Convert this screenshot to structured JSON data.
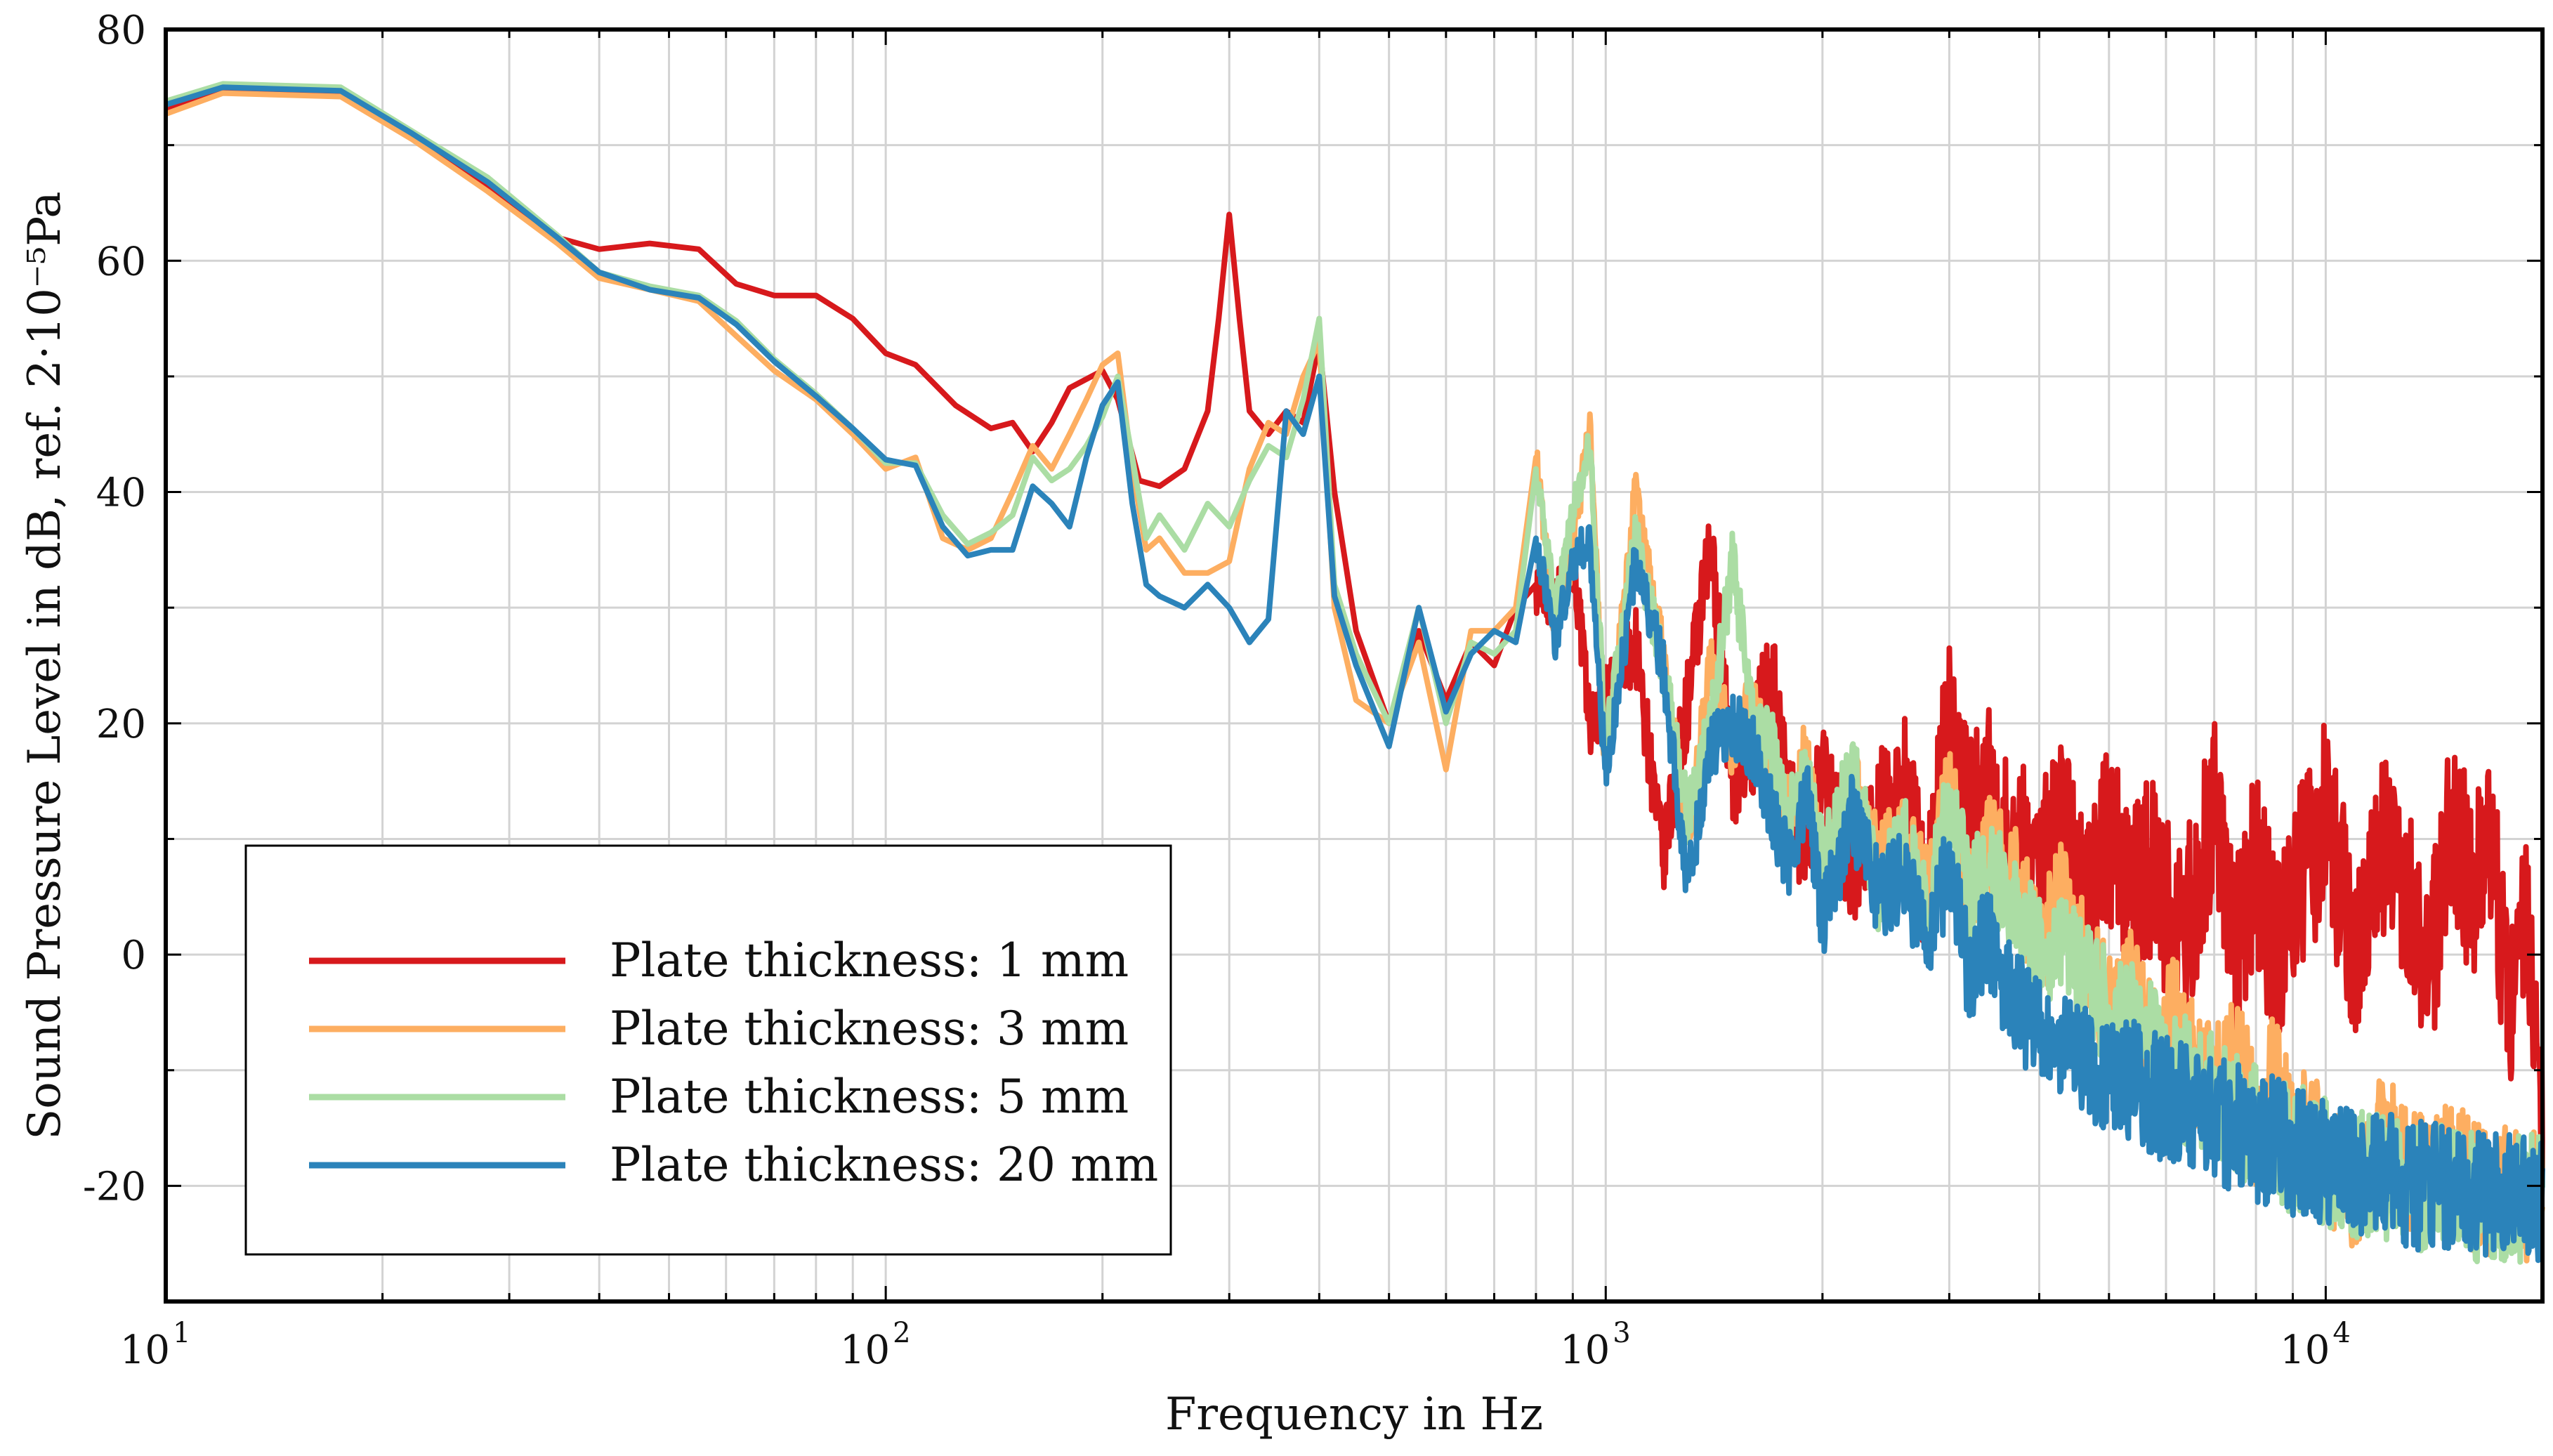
{
  "chart_data": {
    "type": "line",
    "xscale": "log",
    "xlim": [
      10,
      20000
    ],
    "ylim": [
      -30,
      80
    ],
    "xlabel": "Frequency in Hz",
    "ylabel": "Sound Pressure Level in dB, ref. 2·10⁻⁵Pa",
    "x_tick_labels": [
      {
        "value": 10,
        "base": "10",
        "exp": "1"
      },
      {
        "value": 100,
        "base": "10",
        "exp": "2"
      },
      {
        "value": 1000,
        "base": "10",
        "exp": "3"
      },
      {
        "value": 10000,
        "base": "10",
        "exp": "4"
      }
    ],
    "y_ticks": [
      -20,
      0,
      20,
      40,
      60,
      80
    ],
    "y_tick_labels": [
      "-20",
      "0",
      "20",
      "40",
      "60",
      "80"
    ],
    "grid": true,
    "legend_position": "bottom-left",
    "series": [
      {
        "name": "Plate thickness: 1 mm",
        "color": "#d7191c",
        "x": [
          10,
          12,
          17.5,
          22,
          28,
          35,
          40,
          47,
          55,
          62,
          70,
          80,
          90,
          100,
          110,
          125,
          140,
          150,
          160,
          170,
          180,
          200,
          210,
          225,
          240,
          260,
          280,
          290,
          300,
          310,
          320,
          340,
          360,
          380,
          400,
          420,
          450,
          500,
          550,
          600,
          650,
          700,
          750,
          800,
          850,
          900,
          950,
          1000,
          1100,
          1200,
          1300,
          1400,
          1500,
          1600,
          1700,
          1800,
          1900,
          2000,
          2200,
          2400,
          2600,
          2800,
          3000,
          3200,
          3400,
          3600,
          3800,
          4000,
          4300,
          4600,
          5000,
          5400,
          5800,
          6200,
          6600,
          7000,
          7500,
          8000,
          8500,
          9000,
          9500,
          10000,
          11000,
          12000,
          13000,
          14000,
          15000,
          16000,
          17000,
          18000,
          19000,
          20000
        ],
        "y": [
          73,
          74.8,
          74.5,
          71,
          66.5,
          62,
          61,
          61.5,
          61,
          58,
          57,
          57,
          55,
          52,
          51,
          47.5,
          45.5,
          46,
          43.5,
          46,
          49,
          50.5,
          48,
          41,
          40.5,
          42,
          47,
          55,
          64,
          55,
          47,
          45,
          47,
          46,
          53,
          40,
          28,
          20,
          28,
          22,
          27,
          25,
          30,
          32,
          30,
          35,
          20,
          22,
          27,
          8,
          22,
          35,
          15,
          18,
          25,
          12,
          10,
          15,
          8,
          12,
          15,
          5,
          22,
          12,
          15,
          10,
          10,
          8,
          12,
          5,
          10,
          5,
          8,
          0,
          5,
          12,
          0,
          8,
          0,
          5,
          8,
          12,
          0,
          10,
          5,
          0,
          12,
          5,
          8,
          -5,
          5,
          -12
        ]
      },
      {
        "name": "Plate thickness: 3 mm",
        "color": "#fdae61",
        "x": [
          10,
          12,
          17.5,
          22,
          28,
          35,
          40,
          47,
          55,
          62,
          70,
          80,
          90,
          100,
          110,
          120,
          130,
          140,
          150,
          160,
          170,
          180,
          190,
          200,
          210,
          220,
          230,
          240,
          260,
          280,
          300,
          320,
          340,
          360,
          380,
          400,
          420,
          450,
          500,
          550,
          600,
          650,
          700,
          750,
          800,
          850,
          900,
          950,
          1000,
          1100,
          1200,
          1300,
          1400,
          1500,
          1600,
          1700,
          1800,
          1900,
          2000,
          2200,
          2400,
          2600,
          2800,
          3000,
          3200,
          3400,
          3600,
          3800,
          4000,
          4300,
          4600,
          5000,
          5400,
          5800,
          6200,
          6600,
          7000,
          7500,
          8000,
          8500,
          9000,
          9500,
          10000,
          11000,
          12000,
          13000,
          14000,
          15000,
          16000,
          17000,
          18000,
          19000,
          20000
        ],
        "y": [
          72.7,
          74.5,
          74.2,
          70.5,
          66,
          61.5,
          58.5,
          57.5,
          56.5,
          53.5,
          50.5,
          48,
          45,
          42,
          43,
          36,
          35,
          36,
          40,
          44,
          42,
          45,
          48,
          51,
          52,
          42,
          35,
          36,
          33,
          33,
          34,
          42,
          46,
          45,
          50,
          53,
          30,
          22,
          20,
          27,
          16,
          28,
          28,
          30,
          43,
          28,
          35,
          46,
          15,
          40,
          26,
          10,
          25,
          18,
          22,
          15,
          12,
          18,
          5,
          15,
          8,
          10,
          5,
          15,
          5,
          10,
          8,
          5,
          0,
          5,
          0,
          -5,
          -3,
          -8,
          -5,
          -10,
          -12,
          -8,
          -15,
          -10,
          -17,
          -15,
          -18,
          -20,
          -15,
          -18,
          -20,
          -18,
          -20,
          -21,
          -20,
          -21,
          -20
        ]
      },
      {
        "name": "Plate thickness: 5 mm",
        "color": "#abdda4",
        "x": [
          10,
          12,
          17.5,
          22,
          28,
          35,
          40,
          47,
          55,
          62,
          70,
          80,
          90,
          100,
          110,
          120,
          130,
          140,
          150,
          160,
          170,
          180,
          190,
          200,
          210,
          220,
          230,
          240,
          260,
          280,
          300,
          320,
          340,
          360,
          380,
          400,
          420,
          450,
          500,
          550,
          600,
          650,
          700,
          750,
          800,
          850,
          900,
          950,
          1000,
          1100,
          1200,
          1300,
          1400,
          1500,
          1600,
          1700,
          1800,
          1900,
          2000,
          2200,
          2400,
          2600,
          2800,
          3000,
          3200,
          3400,
          3600,
          3800,
          4000,
          4300,
          4600,
          5000,
          5400,
          5800,
          6200,
          6600,
          7000,
          7500,
          8000,
          8500,
          9000,
          9500,
          10000,
          11000,
          12000,
          13000,
          14000,
          15000,
          16000,
          17000,
          18000,
          19000,
          20000
        ],
        "y": [
          73.8,
          75.3,
          75,
          71.2,
          67.2,
          62.2,
          59,
          57.8,
          57,
          54.8,
          51.5,
          48.5,
          45.5,
          42.5,
          42.5,
          38,
          35.5,
          36.5,
          38,
          43,
          41,
          42,
          44,
          46.5,
          50,
          43,
          36,
          38,
          35,
          39,
          37,
          41,
          44,
          43,
          48,
          55,
          32,
          26,
          20,
          30,
          20,
          27,
          26,
          28,
          42,
          30,
          38,
          44,
          18,
          36,
          25,
          12,
          20,
          34,
          20,
          18,
          12,
          15,
          8,
          16,
          5,
          10,
          3,
          14,
          5,
          8,
          5,
          3,
          0,
          2,
          -2,
          -5,
          -6,
          -8,
          -10,
          -12,
          -12,
          -14,
          -15,
          -16,
          -17,
          -17,
          -18,
          -19,
          -19,
          -20,
          -20,
          -20,
          -21,
          -21,
          -21,
          -21,
          -21
        ]
      },
      {
        "name": "Plate thickness: 20 mm",
        "color": "#2b83ba",
        "x": [
          10,
          12,
          17.5,
          22,
          28,
          35,
          40,
          47,
          55,
          62,
          70,
          80,
          90,
          100,
          110,
          120,
          130,
          140,
          150,
          160,
          170,
          180,
          190,
          200,
          210,
          220,
          230,
          240,
          260,
          280,
          300,
          320,
          340,
          360,
          380,
          400,
          420,
          450,
          500,
          550,
          600,
          650,
          700,
          750,
          800,
          850,
          900,
          950,
          1000,
          1100,
          1200,
          1300,
          1400,
          1500,
          1600,
          1700,
          1800,
          1900,
          2000,
          2200,
          2400,
          2600,
          2800,
          3000,
          3200,
          3400,
          3600,
          3800,
          4000,
          4300,
          4600,
          5000,
          5400,
          5800,
          6200,
          6600,
          7000,
          7500,
          8000,
          8500,
          9000,
          9500,
          10000,
          11000,
          12000,
          13000,
          14000,
          15000,
          16000,
          17000,
          18000,
          19000,
          20000
        ],
        "y": [
          73.5,
          75,
          74.7,
          71,
          66.8,
          62,
          59,
          57.5,
          56.8,
          54.5,
          51.3,
          48.3,
          45.5,
          42.8,
          42.3,
          37,
          34.5,
          35,
          35,
          40.5,
          39,
          37,
          43,
          47.5,
          49.5,
          39,
          32,
          31,
          30,
          32,
          30,
          27,
          29,
          47,
          45,
          50,
          31,
          25,
          18,
          30,
          21,
          26,
          28,
          27,
          36,
          27,
          34,
          36,
          15,
          34,
          25,
          6,
          18,
          20,
          18,
          12,
          8,
          14,
          3,
          12,
          5,
          7,
          0,
          8,
          -2,
          2,
          -3,
          -5,
          -6,
          -8,
          -9,
          -10,
          -11,
          -12,
          -13,
          -14,
          -14,
          -15,
          -16,
          -16,
          -17,
          -17,
          -18,
          -19,
          -19,
          -20,
          -20,
          -20,
          -21,
          -21,
          -21,
          -21,
          -22
        ]
      }
    ]
  }
}
